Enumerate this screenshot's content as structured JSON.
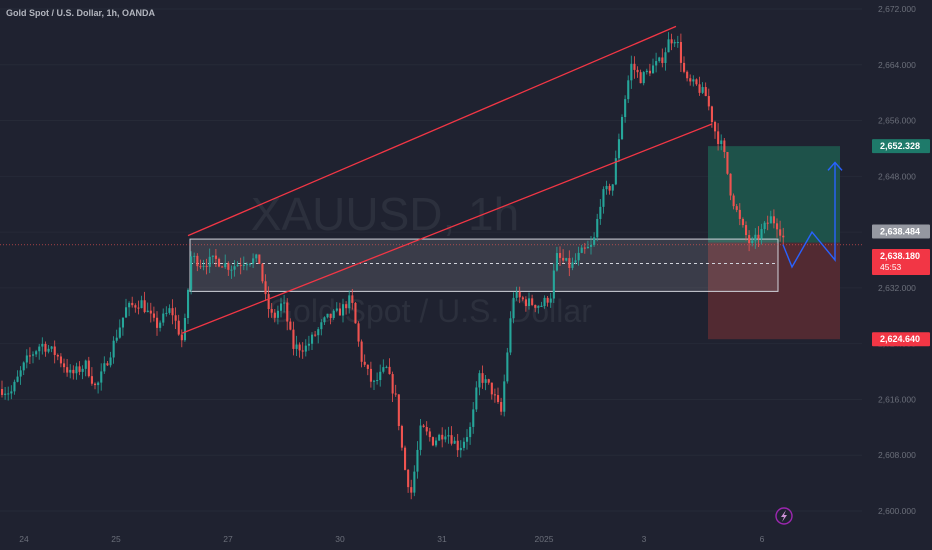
{
  "header": {
    "title": "Gold Spot / U.S. Dollar, 1h, OANDA"
  },
  "watermark": {
    "symbol": "XAUUSD, 1h",
    "description": "Gold Spot / U.S. Dollar"
  },
  "colors": {
    "background": "#1f2230",
    "up": "#26a69a",
    "down": "#ef5350",
    "channel": "#f23645",
    "zone": "#ffffff",
    "projection": "#2962ff",
    "target_zone": "#1e5a4f",
    "stop_zone": "#5c2b33",
    "axis_text": "#6b6f7a"
  },
  "chart_data": {
    "type": "candlestick",
    "title": "Gold Spot / U.S. Dollar, 1h, OANDA",
    "xlabel": "",
    "ylabel": "",
    "ylim": [
      2599,
      2673
    ],
    "x_ticks": [
      "24",
      "25",
      "27",
      "30",
      "31",
      "2025",
      "3",
      "6"
    ],
    "y_ticks": [
      2600,
      2608,
      2616,
      2624,
      2632,
      2640,
      2648,
      2656,
      2664,
      2672
    ],
    "y_tick_labels": [
      "2,600.000",
      "2,608.000",
      "2,616.000",
      "2,624.000",
      "2,632.000",
      "2,640.000",
      "2,648.000",
      "2,656.000",
      "2,664.000",
      "2,672.000"
    ],
    "y_axis_labels_visible": [
      "2,672.000",
      "2,664.000",
      "2,656.000",
      "2,648.000",
      "2,632.000",
      "2,624.000",
      "2,616.000",
      "2,608.000",
      "2,600.000"
    ],
    "price_path": [
      [
        0,
        2617.5
      ],
      [
        10,
        2617.0
      ],
      [
        25,
        2621.5
      ],
      [
        40,
        2624.0
      ],
      [
        55,
        2622.5
      ],
      [
        70,
        2619.5
      ],
      [
        85,
        2621.0
      ],
      [
        95,
        2617.5
      ],
      [
        110,
        2623.0
      ],
      [
        125,
        2629.0
      ],
      [
        140,
        2630.0
      ],
      [
        155,
        2626.5
      ],
      [
        170,
        2629.0
      ],
      [
        182,
        2624.0
      ],
      [
        190,
        2636.5
      ],
      [
        200,
        2635.5
      ],
      [
        215,
        2636.0
      ],
      [
        230,
        2635.0
      ],
      [
        245,
        2636.0
      ],
      [
        258,
        2636.0
      ],
      [
        265,
        2630.0
      ],
      [
        272,
        2627.5
      ],
      [
        282,
        2630.0
      ],
      [
        292,
        2623.5
      ],
      [
        305,
        2623.5
      ],
      [
        315,
        2625.5
      ],
      [
        325,
        2627.5
      ],
      [
        338,
        2628.5
      ],
      [
        350,
        2630.5
      ],
      [
        360,
        2622.0
      ],
      [
        372,
        2618.0
      ],
      [
        385,
        2620.5
      ],
      [
        395,
        2616.0
      ],
      [
        403,
        2606.5
      ],
      [
        410,
        2602.5
      ],
      [
        420,
        2612.0
      ],
      [
        432,
        2610.0
      ],
      [
        445,
        2611.5
      ],
      [
        458,
        2609.0
      ],
      [
        470,
        2612.0
      ],
      [
        478,
        2619.5
      ],
      [
        490,
        2617.5
      ],
      [
        500,
        2614.0
      ],
      [
        512,
        2631.0
      ],
      [
        525,
        2630.0
      ],
      [
        540,
        2629.5
      ],
      [
        550,
        2631.0
      ],
      [
        555,
        2636.5
      ],
      [
        570,
        2635.0
      ],
      [
        580,
        2637.0
      ],
      [
        592,
        2638.0
      ],
      [
        600,
        2645.0
      ],
      [
        612,
        2647.0
      ],
      [
        620,
        2656.0
      ],
      [
        630,
        2664.0
      ],
      [
        640,
        2662.0
      ],
      [
        650,
        2663.5
      ],
      [
        660,
        2664.5
      ],
      [
        668,
        2667.5
      ],
      [
        675,
        2668.0
      ],
      [
        685,
        2661.5
      ],
      [
        695,
        2661.0
      ],
      [
        705,
        2659.5
      ],
      [
        715,
        2654.0
      ],
      [
        722,
        2652.0
      ],
      [
        730,
        2645.5
      ],
      [
        740,
        2641.0
      ],
      [
        750,
        2638.0
      ],
      [
        760,
        2640.0
      ],
      [
        770,
        2642.0
      ],
      [
        777,
        2641.0
      ],
      [
        785,
        2638.2
      ]
    ],
    "channel_lines": [
      {
        "name": "upper",
        "from": [
          188,
          2639.5
        ],
        "to": [
          676,
          2669.5
        ]
      },
      {
        "name": "lower",
        "from": [
          182,
          2625.5
        ],
        "to": [
          712,
          2655.5
        ]
      }
    ],
    "support_zone": {
      "top": 2639.0,
      "bottom": 2631.5,
      "mid": 2635.5,
      "x_from": 190,
      "x_to": 778
    },
    "position": {
      "entry": 2638.484,
      "target": 2652.328,
      "stop": 2624.64,
      "x_from": 708,
      "x_to": 840
    },
    "projection_path": [
      [
        783,
        2638.2
      ],
      [
        792,
        2635.0
      ],
      [
        812,
        2640.0
      ],
      [
        835,
        2636.0
      ],
      [
        835,
        2650.0
      ]
    ],
    "current_price": 2638.18,
    "countdown": "45:53"
  },
  "price_labels": {
    "target": "2,652.328",
    "entry": "2,638.484",
    "current": "2,638.180",
    "countdown": "45:53",
    "stop": "2,624.640"
  },
  "icons": {
    "bottom": "lightning-icon"
  }
}
